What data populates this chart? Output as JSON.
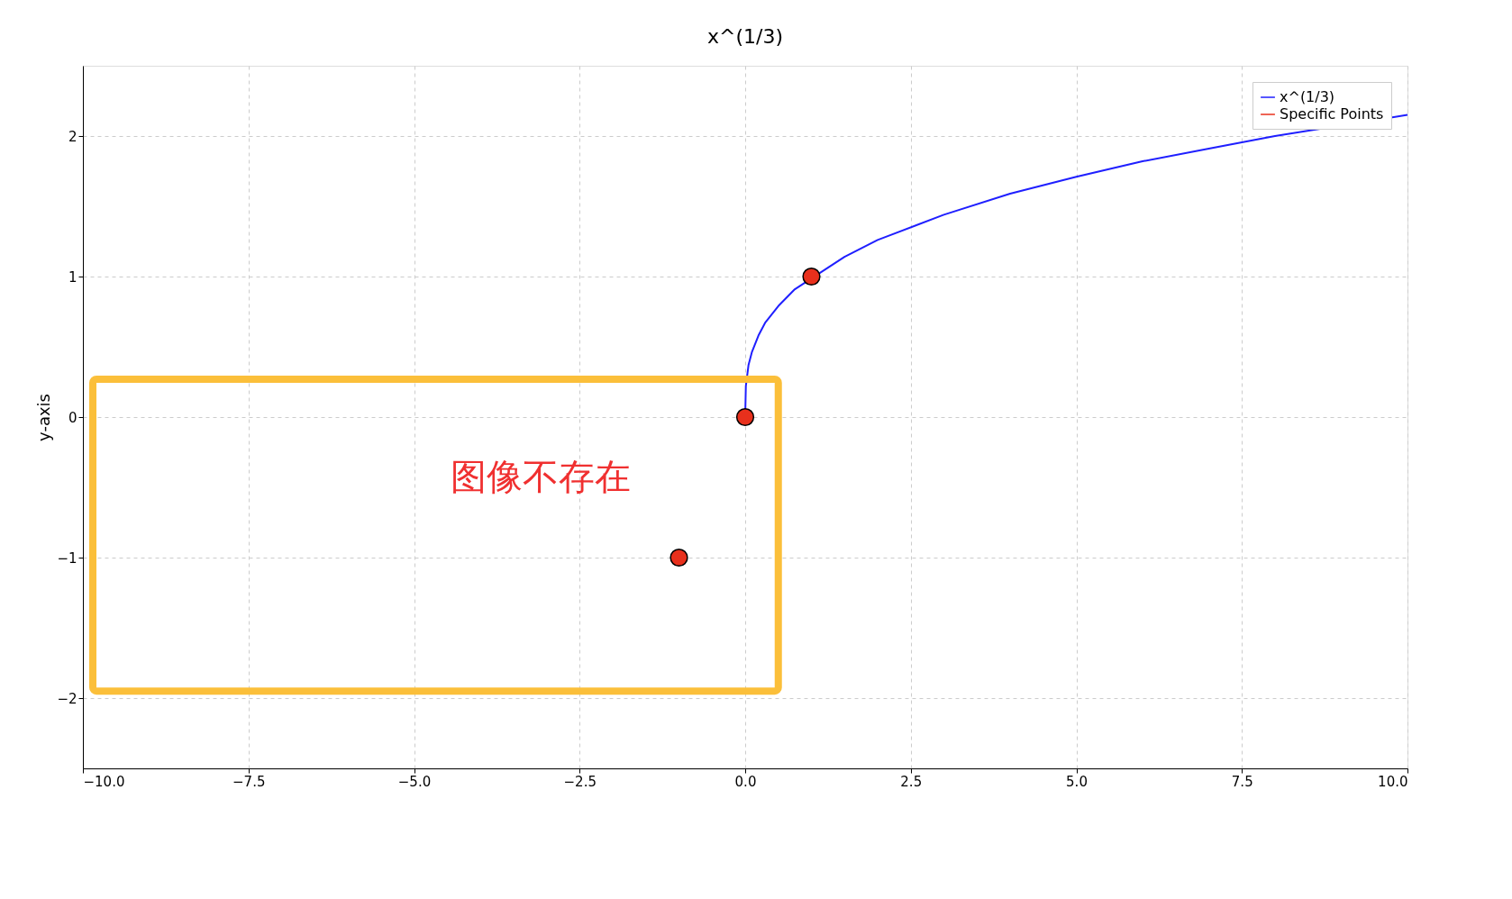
{
  "chart_data": {
    "type": "line",
    "title": "x^(1/3)",
    "ylabel": "y-axis",
    "xlim": [
      -10,
      10
    ],
    "ylim": [
      -2.5,
      2.5
    ],
    "xticks": [
      {
        "value": -10,
        "label": "−10.0"
      },
      {
        "value": -7.5,
        "label": "−7.5"
      },
      {
        "value": -5,
        "label": "−5.0"
      },
      {
        "value": -2.5,
        "label": "−2.5"
      },
      {
        "value": 0,
        "label": "0.0"
      },
      {
        "value": 2.5,
        "label": "2.5"
      },
      {
        "value": 5,
        "label": "5.0"
      },
      {
        "value": 7.5,
        "label": "7.5"
      },
      {
        "value": 10,
        "label": "10.0"
      }
    ],
    "yticks": [
      {
        "value": -2,
        "label": "−2"
      },
      {
        "value": -1,
        "label": "−1"
      },
      0,
      1,
      2
    ],
    "grid": true,
    "legend": "top right",
    "series": [
      {
        "name": "x^(1/3)",
        "color": "#1f1fff",
        "line_style": "solid",
        "marker": "none",
        "x": [
          0,
          0.01,
          0.05,
          0.1,
          0.2,
          0.3,
          0.5,
          0.75,
          1.5,
          2,
          3,
          4,
          5,
          6,
          7,
          8,
          10
        ],
        "values": [
          0,
          0.22,
          0.37,
          0.46,
          0.58,
          0.67,
          0.79,
          0.91,
          1.14,
          1.26,
          1.44,
          1.59,
          1.71,
          1.82,
          1.91,
          2,
          2.15
        ]
      },
      {
        "name": "Specific Points",
        "type": "scatter",
        "color": "#e8301c",
        "marker": "circle",
        "x": [
          -1,
          0,
          1
        ],
        "values": [
          -1,
          0,
          1
        ]
      }
    ],
    "annotations": [
      "图像不存在"
    ]
  }
}
